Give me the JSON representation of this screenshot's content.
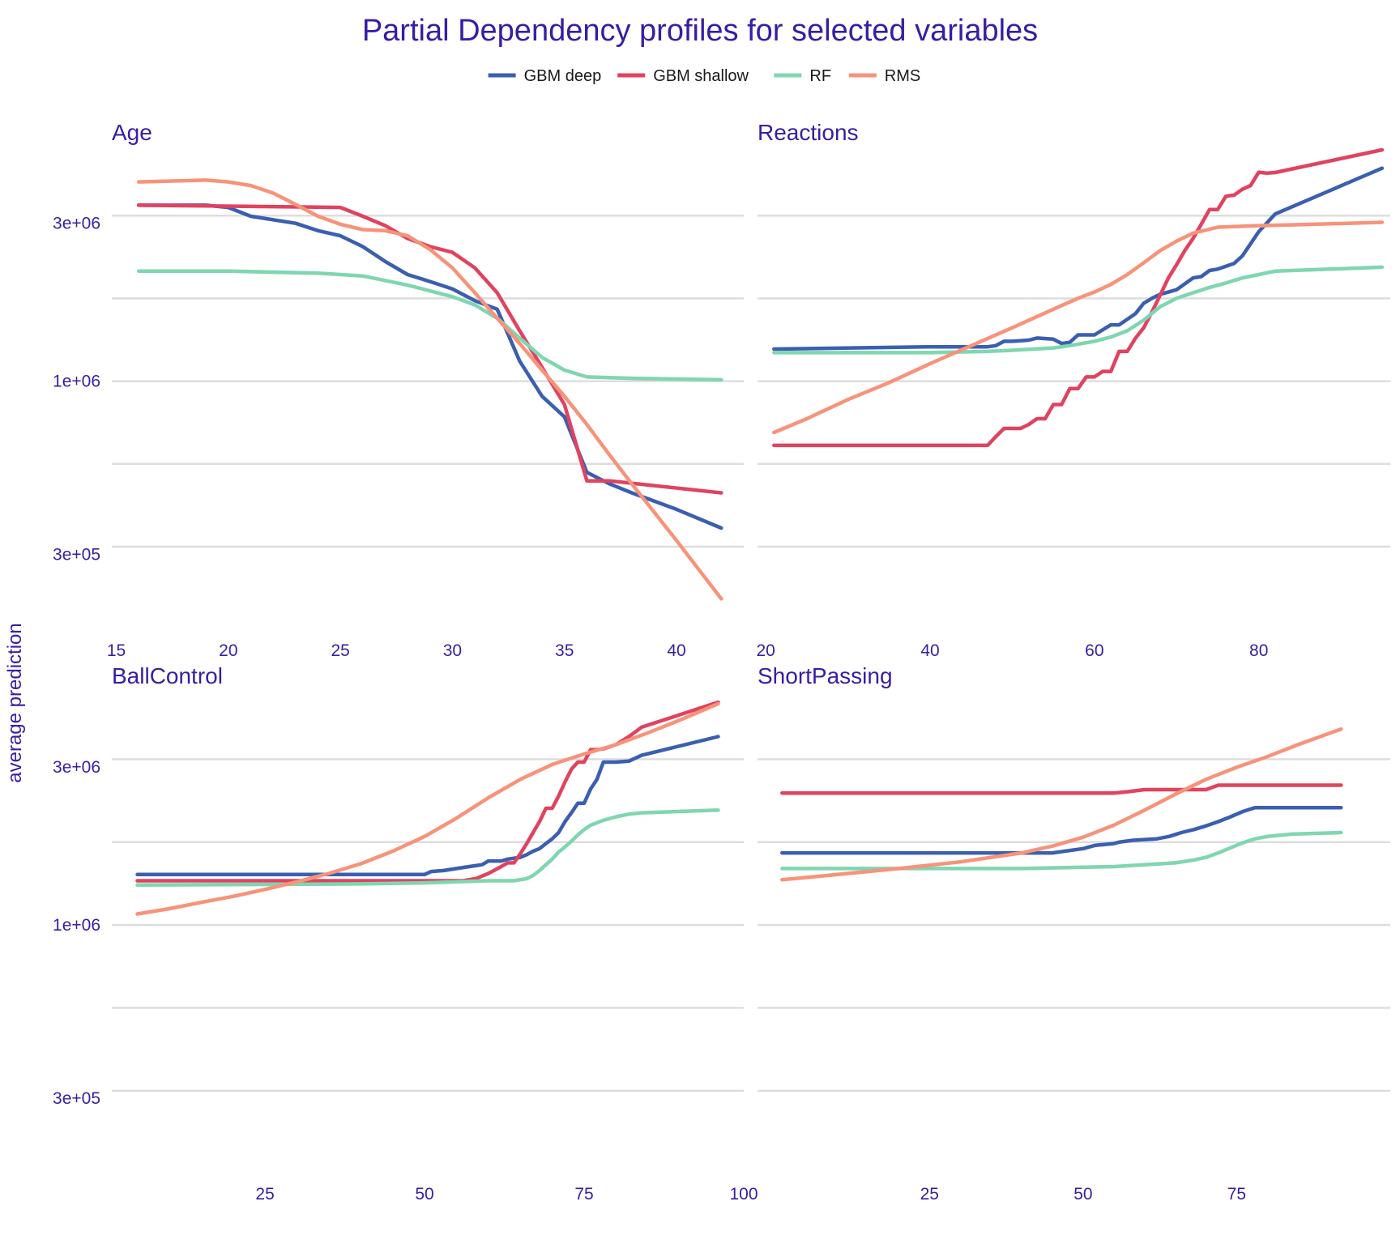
{
  "chart_data": {
    "type": "line",
    "title": "Partial Dependency profiles for selected variables",
    "ylabel": "average prediction",
    "y_scale": "log10",
    "ylim": [
      180000,
      5000000
    ],
    "y_ticks": [
      {
        "value": 300000,
        "label": "3e+05"
      },
      {
        "value": 1000000,
        "label": "1e+06"
      },
      {
        "value": 3000000,
        "label": "3e+06"
      }
    ],
    "legend": {
      "position": "top",
      "entries": [
        {
          "name": "GBM deep",
          "color": "#4378bf"
        },
        {
          "name": "GBM shallow",
          "color": "#ae2c87"
        },
        {
          "name": "RF",
          "color": "#8bdcbe"
        },
        {
          "name": "RMS",
          "color": "#f05a71"
        }
      ]
    },
    "colors": {
      "GBM deep": "#3b5fb0",
      "GBM shallow": "#e0435f",
      "RF": "#7fd6b0",
      "RMS": "#f7937a"
    },
    "grid": true,
    "facets": [
      {
        "variable": "Age",
        "xlim": [
          14.8,
          43
        ],
        "x_ticks": [
          15,
          20,
          25,
          30,
          35,
          40
        ],
        "series": [
          {
            "name": "GBM deep",
            "x": [
              16,
              19,
              20,
              21,
              23,
              24,
              25,
              26,
              27,
              28,
              29,
              30,
              31,
              32,
              33,
              34,
              35,
              36,
              37,
              38,
              40,
              42
            ],
            "y": [
              3400000,
              3400000,
              3350000,
              3150000,
              3000000,
              2850000,
              2750000,
              2550000,
              2300000,
              2100000,
              2000000,
              1900000,
              1750000,
              1650000,
              1150000,
              900000,
              780000,
              530000,
              490000,
              460000,
              410000,
              360000
            ]
          },
          {
            "name": "GBM shallow",
            "x": [
              16,
              25,
              26,
              27,
              28,
              29,
              30,
              31,
              32,
              33,
              34,
              35,
              36,
              37,
              42
            ],
            "y": [
              3400000,
              3350000,
              3150000,
              2950000,
              2700000,
              2550000,
              2450000,
              2200000,
              1850000,
              1420000,
              1100000,
              850000,
              500000,
              500000,
              460000
            ]
          },
          {
            "name": "RF",
            "x": [
              16,
              20,
              24,
              26,
              28,
              30,
              31,
              32,
              33,
              34,
              35,
              36,
              38,
              42
            ],
            "y": [
              2150000,
              2150000,
              2120000,
              2080000,
              1950000,
              1800000,
              1700000,
              1550000,
              1350000,
              1180000,
              1080000,
              1030000,
              1020000,
              1010000
            ]
          },
          {
            "name": "RMS",
            "x": [
              16,
              19,
              20,
              21,
              22,
              23,
              24,
              25,
              26,
              27,
              28,
              29,
              30,
              31,
              32,
              33,
              34,
              35,
              36,
              37,
              38,
              40,
              42
            ],
            "y": [
              4000000,
              4050000,
              4000000,
              3900000,
              3700000,
              3420000,
              3150000,
              2980000,
              2870000,
              2850000,
              2750000,
              2500000,
              2200000,
              1850000,
              1550000,
              1300000,
              1080000,
              900000,
              740000,
              600000,
              490000,
              330000,
              220000
            ]
          }
        ]
      },
      {
        "variable": "Reactions",
        "xlim": [
          19,
          96
        ],
        "x_ticks": [
          20,
          40,
          60,
          80
        ],
        "series": [
          {
            "name": "GBM deep",
            "x": [
              21,
              40,
              47,
              48,
              49,
              50,
              52,
              53,
              55,
              56,
              57,
              58,
              60,
              62,
              63,
              65,
              66,
              67,
              68,
              70,
              72,
              73,
              74,
              75,
              77,
              78,
              80,
              82,
              95
            ],
            "y": [
              1250000,
              1270000,
              1270000,
              1280000,
              1320000,
              1320000,
              1330000,
              1350000,
              1340000,
              1300000,
              1310000,
              1380000,
              1380000,
              1480000,
              1480000,
              1600000,
              1720000,
              1780000,
              1830000,
              1890000,
              2050000,
              2070000,
              2160000,
              2180000,
              2270000,
              2390000,
              2830000,
              3200000,
              4400000
            ]
          },
          {
            "name": "GBM shallow",
            "x": [
              21,
              47,
              48,
              49,
              50,
              51,
              52,
              53,
              54,
              55,
              56,
              57,
              58,
              59,
              60,
              61,
              62,
              63,
              64,
              65,
              66,
              67,
              68,
              69,
              70,
              71,
              72,
              73,
              74,
              75,
              76,
              77,
              78,
              79,
              80,
              81,
              82,
              95
            ],
            "y": [
              640000,
              640000,
              680000,
              720000,
              720000,
              720000,
              740000,
              770000,
              770000,
              850000,
              850000,
              950000,
              950000,
              1030000,
              1030000,
              1070000,
              1070000,
              1230000,
              1230000,
              1350000,
              1450000,
              1620000,
              1820000,
              2050000,
              2250000,
              2480000,
              2700000,
              2980000,
              3300000,
              3300000,
              3620000,
              3650000,
              3800000,
              3900000,
              4280000,
              4250000,
              4270000,
              5000000
            ]
          },
          {
            "name": "RF",
            "x": [
              21,
              40,
              47,
              50,
              55,
              57,
              60,
              62,
              64,
              66,
              68,
              70,
              72,
              74,
              76,
              78,
              80,
              82,
              95
            ],
            "y": [
              1220000,
              1220000,
              1230000,
              1240000,
              1260000,
              1280000,
              1320000,
              1360000,
              1420000,
              1530000,
              1680000,
              1780000,
              1850000,
              1920000,
              1980000,
              2050000,
              2100000,
              2150000,
              2210000
            ]
          },
          {
            "name": "RMS",
            "x": [
              21,
              25,
              30,
              35,
              40,
              45,
              50,
              55,
              58,
              60,
              62,
              64,
              66,
              68,
              70,
              72,
              75,
              80,
              85,
              95
            ],
            "y": [
              700000,
              770000,
              880000,
              990000,
              1130000,
              1280000,
              1450000,
              1650000,
              1780000,
              1860000,
              1960000,
              2100000,
              2280000,
              2480000,
              2650000,
              2800000,
              2920000,
              2950000,
              2970000,
              3020000
            ]
          }
        ]
      },
      {
        "variable": "BallControl",
        "xlim": [
          1,
          100
        ],
        "x_ticks": [
          25,
          50,
          75,
          100
        ],
        "series": [
          {
            "name": "GBM deep",
            "x": [
              5,
              50,
              51,
              53,
              55,
              57,
              59,
              60,
              62,
              63,
              65,
              66,
              67,
              68,
              69,
              70,
              71,
              72,
              73,
              74,
              75,
              76,
              77,
              78,
              80,
              82,
              84,
              96
            ],
            "y": [
              1420000,
              1420000,
              1450000,
              1460000,
              1480000,
              1500000,
              1520000,
              1560000,
              1560000,
              1580000,
              1600000,
              1630000,
              1670000,
              1700000,
              1760000,
              1820000,
              1900000,
              2050000,
              2180000,
              2330000,
              2330000,
              2570000,
              2750000,
              3100000,
              3100000,
              3120000,
              3250000,
              3700000
            ]
          },
          {
            "name": "GBM shallow",
            "x": [
              5,
              56,
              58,
              60,
              62,
              63,
              64,
              65,
              66,
              67,
              68,
              69,
              70,
              71,
              72,
              73,
              74,
              75,
              76,
              77,
              78,
              80,
              82,
              84,
              96
            ],
            "y": [
              1360000,
              1360000,
              1380000,
              1430000,
              1500000,
              1540000,
              1540000,
              1640000,
              1760000,
              1900000,
              2050000,
              2250000,
              2250000,
              2450000,
              2700000,
              2950000,
              3100000,
              3100000,
              3380000,
              3380000,
              3400000,
              3500000,
              3700000,
              3950000,
              4700000
            ]
          },
          {
            "name": "RF",
            "x": [
              5,
              40,
              50,
              55,
              60,
              64,
              66,
              67,
              68,
              69,
              70,
              71,
              72,
              73,
              74,
              75,
              76,
              78,
              80,
              82,
              84,
              96
            ],
            "y": [
              1320000,
              1330000,
              1340000,
              1350000,
              1360000,
              1360000,
              1380000,
              1410000,
              1460000,
              1520000,
              1580000,
              1660000,
              1720000,
              1790000,
              1870000,
              1940000,
              2000000,
              2070000,
              2120000,
              2160000,
              2180000,
              2220000
            ]
          },
          {
            "name": "RMS",
            "x": [
              5,
              10,
              15,
              20,
              25,
              30,
              35,
              40,
              45,
              50,
              55,
              60,
              65,
              70,
              75,
              80,
              85,
              90,
              96
            ],
            "y": [
              1080000,
              1120000,
              1170000,
              1220000,
              1280000,
              1350000,
              1430000,
              1530000,
              1670000,
              1850000,
              2100000,
              2420000,
              2750000,
              3050000,
              3280000,
              3500000,
              3800000,
              4150000,
              4650000
            ]
          }
        ]
      },
      {
        "variable": "ShortPassing",
        "xlim": [
          -3,
          100
        ],
        "x_ticks": [
          25,
          50,
          75
        ],
        "series": [
          {
            "name": "GBM deep",
            "x": [
              1,
              45,
              50,
              52,
              55,
              56,
              58,
              60,
              62,
              64,
              66,
              68,
              70,
              72,
              74,
              76,
              78,
              92
            ],
            "y": [
              1650000,
              1650000,
              1700000,
              1740000,
              1760000,
              1780000,
              1800000,
              1810000,
              1820000,
              1850000,
              1900000,
              1940000,
              1990000,
              2050000,
              2120000,
              2200000,
              2260000,
              2260000
            ]
          },
          {
            "name": "GBM shallow",
            "x": [
              1,
              55,
              57,
              60,
              70,
              72,
              92
            ],
            "y": [
              2500000,
              2500000,
              2520000,
              2560000,
              2560000,
              2640000,
              2640000
            ]
          },
          {
            "name": "RF",
            "x": [
              1,
              40,
              55,
              60,
              65,
              68,
              70,
              72,
              74,
              76,
              78,
              80,
              84,
              92
            ],
            "y": [
              1480000,
              1480000,
              1500000,
              1520000,
              1540000,
              1570000,
              1600000,
              1650000,
              1710000,
              1770000,
              1820000,
              1850000,
              1880000,
              1900000
            ]
          },
          {
            "name": "RMS",
            "x": [
              1,
              10,
              20,
              30,
              40,
              45,
              50,
              55,
              60,
              65,
              70,
              75,
              80,
              85,
              92
            ],
            "y": [
              1370000,
              1420000,
              1480000,
              1550000,
              1650000,
              1730000,
              1840000,
              2000000,
              2220000,
              2480000,
              2750000,
              2990000,
              3220000,
              3500000,
              3900000
            ]
          }
        ]
      }
    ]
  }
}
